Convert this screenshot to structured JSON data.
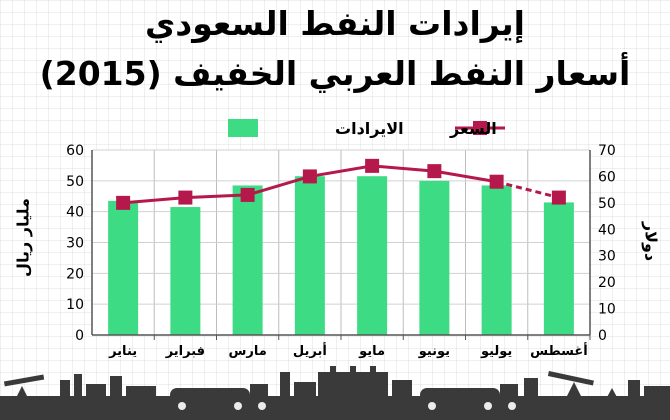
{
  "title_line1": "إيرادات النفط السعودي",
  "title_line2": "أسعار النفط العربي الخفيف (2015)",
  "colors": {
    "bar": "#3ddc84",
    "line": "#b5184a",
    "axis": "#555555",
    "footer": "#3a3a3a"
  },
  "chart_data": {
    "type": "bar",
    "title": "",
    "categories": [
      "يناير",
      "فبراير",
      "مارس",
      "أبريل",
      "مايو",
      "يونيو",
      "يوليو",
      "أغسطس"
    ],
    "series": [
      {
        "name": "الايرادات",
        "type": "bar",
        "axis": "left",
        "values": [
          43.5,
          41.5,
          48.5,
          51.5,
          51.5,
          50,
          48.5,
          43
        ]
      },
      {
        "name": "السعر",
        "type": "line",
        "axis": "right",
        "values": [
          50,
          52,
          53,
          60,
          64,
          62,
          58,
          52
        ],
        "dashed_last_segment": true
      }
    ],
    "ylabel_left": "مليار ريال",
    "ylabel_right": "دولار",
    "ylim_left": [
      0,
      60
    ],
    "ylim_right": [
      0,
      70
    ],
    "yticks_left": [
      0,
      10,
      20,
      30,
      40,
      50,
      60
    ],
    "yticks_right": [
      0,
      10,
      20,
      30,
      40,
      50,
      60,
      70
    ],
    "grid": true,
    "legend_position": "top-center"
  }
}
